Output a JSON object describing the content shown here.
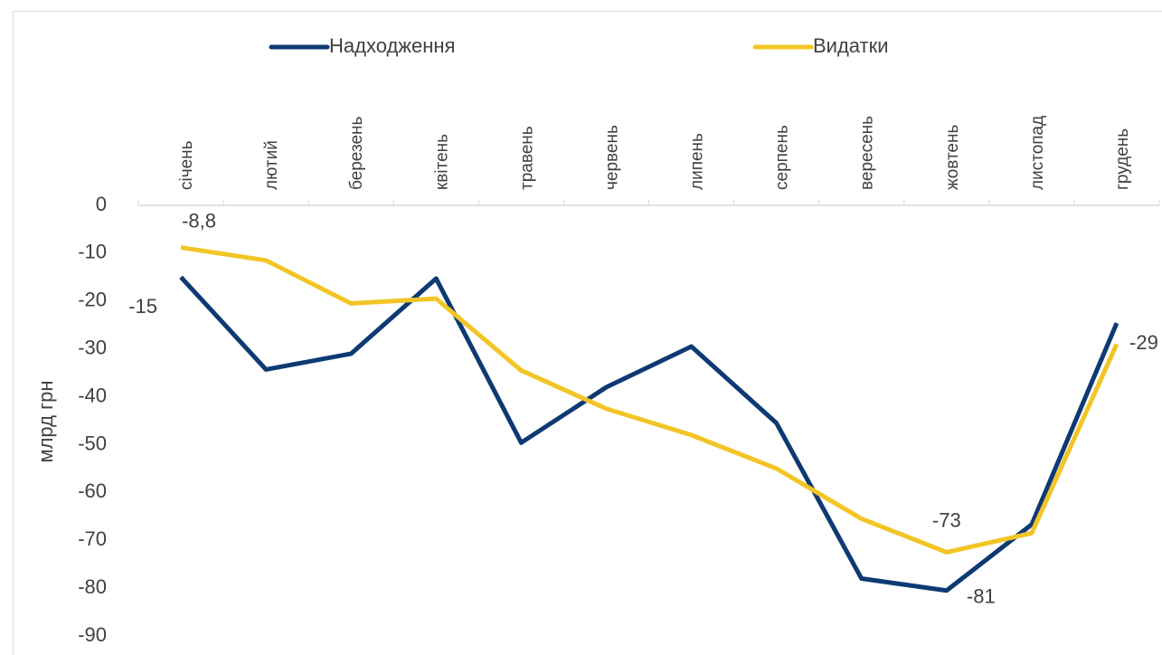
{
  "chart_data": {
    "type": "line",
    "y_label": "млрд грн",
    "categories": [
      "січень",
      "лютий",
      "березень",
      "квітень",
      "травень",
      "червень",
      "липень",
      "серпень",
      "вересень",
      "жовтень",
      "листопад",
      "грудень"
    ],
    "series": [
      {
        "name": "Надходження",
        "color": "#0e3a73",
        "values": [
          -15,
          -34.3,
          -31,
          -15.3,
          -49.6,
          -38,
          -29.5,
          -45.5,
          -78,
          -80.5,
          -66.7,
          -24.6
        ],
        "value_labels": [
          "-15",
          null,
          null,
          null,
          null,
          null,
          null,
          null,
          null,
          "-81",
          null,
          null
        ]
      },
      {
        "name": "Видатки",
        "color": "#f2c526",
        "values": [
          -8.8,
          -11.5,
          -20.5,
          -19.5,
          -34.5,
          -42.5,
          -48,
          -55,
          -65.5,
          -72.5,
          -68.5,
          -29
        ],
        "value_labels": [
          "-8,8",
          null,
          null,
          null,
          null,
          null,
          null,
          null,
          null,
          "-73",
          null,
          "-29"
        ]
      }
    ],
    "ylim": [
      -90,
      0
    ],
    "yticks": [
      0,
      -10,
      -20,
      -30,
      -40,
      -50,
      -60,
      -70,
      -80,
      -90
    ],
    "legend": "top",
    "grid": false
  }
}
